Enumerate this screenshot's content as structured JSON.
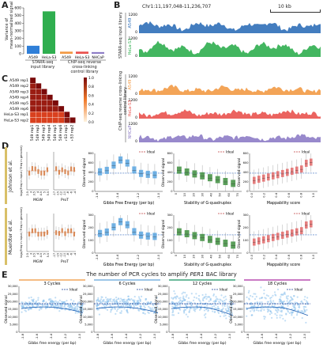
{
  "panels": {
    "A": "A",
    "B": "B",
    "C": "C",
    "D": "D",
    "E": "E"
  },
  "panelA": {
    "ylabel_lines": [
      "Variance of",
      "mean-normalized signal"
    ],
    "ticks": [
      "0",
      "100",
      "200",
      "300",
      "400",
      "500",
      "600"
    ],
    "bars": [
      {
        "name": "STARR-seq input library",
        "value": 105,
        "color": "#2f7fd8"
      },
      {
        "name": "HeLa-S3",
        "value": 555,
        "color": "#2fae4f"
      },
      {
        "name": "A549",
        "value": 28,
        "color": "#f29a45"
      },
      {
        "name": "HeLa-S3",
        "value": 28,
        "color": "#e9524e"
      },
      {
        "name": "NHCaP",
        "value": 22,
        "color": "#8d7cc6"
      }
    ],
    "bar_labels": [
      "A549",
      "HeLa-S3",
      "A549",
      "HeLa-S3",
      "NHCaP"
    ],
    "group1_lines": [
      "STARR-seq",
      "input library"
    ],
    "group2_lines": [
      "ChIP-seq reverse",
      "cross-linking",
      "control library"
    ]
  },
  "panelB": {
    "coords": "Chr1:11,197,048-11,236,707",
    "scale": "10 kb",
    "group1": "STARR-seq input library",
    "group2": "ChIP-seq reverse cross-linking control library",
    "tracks": [
      {
        "name": "A549",
        "max": "1200",
        "min": "0",
        "color": "#2f6fb8",
        "level": 0.55
      },
      {
        "name": "HeLa-S3",
        "max": "1200",
        "min": "0",
        "color": "#2fae4f",
        "level": 0.75
      },
      {
        "name": "A549",
        "max": "1200",
        "min": "0",
        "color": "#f29a45",
        "level": 0.35
      },
      {
        "name": "HeLa-S3",
        "max": "1200",
        "min": "0",
        "color": "#e9524e",
        "level": 0.35
      },
      {
        "name": "NHCaP",
        "max": "1200",
        "min": "0",
        "color": "#8d7cc6",
        "level": 0.3
      }
    ]
  },
  "panelC": {
    "rows": [
      "A549 rep1",
      "A549 rep2",
      "A549 rep3",
      "A549 rep4",
      "A549 rep5",
      "A549 rep6",
      "HeLa-S3 rep1",
      "HeLa-S3 rep2"
    ],
    "scale_ticks": [
      "1.0",
      "0.8",
      "0.6",
      "0.4",
      "0.2",
      "0.0"
    ]
  },
  "panelD": {
    "row_labels": [
      "Johnson et al.",
      "Muerdter et al."
    ],
    "small_ylabel": "log₂(Freq in input / Freq in genome)",
    "small_xlabels": [
      "MGW",
      "ProT"
    ],
    "mgw_ticks": [
      "2.5",
      "3",
      "3.5",
      "4",
      "4.5",
      "5",
      "5.5"
    ],
    "prot_ticks": [
      "-17",
      "-15",
      "-12",
      "-10",
      "-8",
      "-6",
      "-4"
    ],
    "legend": "Ideal",
    "plots": [
      {
        "xlabel": "Gibbs Free Energy (per bp)",
        "ylabel": "Observed signal",
        "color": "#5aa6e0",
        "ticks_x": [
          "-1.6",
          "-1.4",
          "-1.2",
          "-1.0"
        ]
      },
      {
        "xlabel": "Stability of G-quadruplex",
        "ylabel": "Observed signal",
        "color": "#3f8f3f",
        "ticks_x": [
          "0",
          "10",
          "20",
          "30",
          "40",
          "50",
          "60",
          "70"
        ]
      },
      {
        "xlabel": "Mappability score",
        "ylabel": "Observed signal",
        "color": "#e36a6a",
        "ticks_x": [
          "0.0",
          "0.2",
          "0.4",
          "0.6",
          "0.8",
          "1.0"
        ]
      }
    ],
    "row1_yticks": [
      "0",
      "200",
      "400",
      "600",
      "800"
    ],
    "row2_yticks": [
      "0",
      "100",
      "200",
      "300"
    ]
  },
  "panelE": {
    "title_pre": "The number of PCR cycles to amplify ",
    "title_em": "PER1",
    "title_post": " BAC library",
    "cycles": [
      "3 Cycles",
      "6 Cycles",
      "12 Cycles",
      "18 Cycles"
    ],
    "cycle_colors": [
      "#f2a65a",
      "#7db3e0",
      "#3da37a",
      "#b84fb0"
    ],
    "xlabel": "Gibbs free energy (per bp)",
    "ylabel": "Observed signal",
    "yticks": [
      "0",
      "5,000",
      "10,000",
      "15,000",
      "20,000",
      "25,000",
      "30,000"
    ],
    "xticks": [
      "-1.8",
      "-1.6",
      "-1.4",
      "-1.2",
      "-1.0"
    ],
    "legend": "Ideal"
  }
}
